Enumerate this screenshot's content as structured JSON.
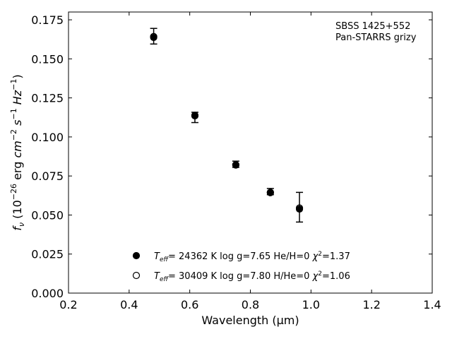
{
  "chart_data": {
    "type": "scatter",
    "title": "",
    "xlabel": "Wavelength (μm)",
    "ylabel": "f_ν (10^-26 erg cm^-2 s^-1 Hz^-1)",
    "xlim": [
      0.2,
      1.4
    ],
    "ylim": [
      0.0,
      0.18
    ],
    "xticks": [
      "0.2",
      "0.4",
      "0.6",
      "0.8",
      "1.0",
      "1.2",
      "1.4"
    ],
    "yticks": [
      "0.000",
      "0.025",
      "0.050",
      "0.075",
      "0.100",
      "0.125",
      "0.150",
      "0.175"
    ],
    "grid": false,
    "annotation": [
      "SBSS 1425+552",
      "Pan-STARRS grizy"
    ],
    "observed": {
      "x": [
        0.481,
        0.617,
        0.752,
        0.866,
        0.962
      ],
      "y": [
        0.1645,
        0.1125,
        0.0825,
        0.065,
        0.055
      ],
      "err": [
        0.005,
        0.0033,
        0.002,
        0.002,
        0.0095
      ]
    },
    "series": [
      {
        "name": "T_eff= 24362 K  log g=7.65  He/H=0  χ²=1.37",
        "marker": "filled-circle",
        "x": [
          0.481,
          0.617,
          0.752,
          0.866,
          0.962
        ],
        "y": [
          0.1637,
          0.1135,
          0.082,
          0.0643,
          0.0538
        ]
      },
      {
        "name": "T_eff= 30409 K  log g=7.80  H/He=0  χ²=1.06",
        "marker": "open-circle",
        "x": [
          0.481,
          0.617,
          0.752,
          0.866,
          0.962
        ],
        "y": [
          0.1643,
          0.1138,
          0.0822,
          0.0645,
          0.0545
        ]
      }
    ],
    "legend_position": "lower-center"
  }
}
